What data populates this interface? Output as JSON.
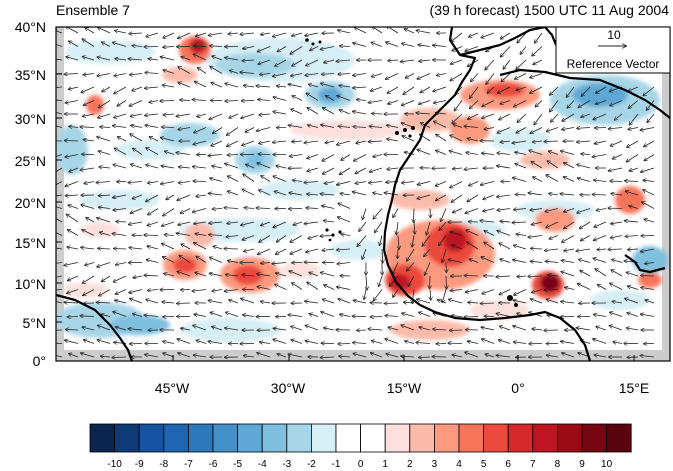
{
  "map": {
    "title_left": "Ensemble 7",
    "title_right": "(39 h forecast) 1500 UTC 11 Aug 2004",
    "lat_labels": [
      "40°N",
      "35°N",
      "30°N",
      "25°N",
      "20°N",
      "15°N",
      "10°N",
      "5°N",
      "0°"
    ],
    "lon_labels": [
      "45°W",
      "30°W",
      "15°W",
      "0°",
      "15°E"
    ],
    "reference_vector": {
      "magnitude": "10",
      "label": "Reference Vector"
    },
    "colorbar": {
      "labels": [
        "-10",
        "-9",
        "-8",
        "-7",
        "-6",
        "-5",
        "-4",
        "-3",
        "-2",
        "-1",
        "0",
        "1",
        "2",
        "3",
        "4",
        "5",
        "6",
        "7",
        "8",
        "9",
        "10"
      ],
      "colors": [
        "#0b2550",
        "#0e3a78",
        "#1553a0",
        "#1f66b2",
        "#2c78bd",
        "#4490c9",
        "#5ea8d5",
        "#7fbfdf",
        "#a7d5e8",
        "#d6eef6",
        "#ffffff",
        "#ffffff",
        "#fde0dd",
        "#fcbbaa",
        "#fb9a7f",
        "#f6745a",
        "#ec4a3c",
        "#d7292c",
        "#bd1620",
        "#9a0b16",
        "#780612",
        "#5a0410"
      ]
    }
  }
}
